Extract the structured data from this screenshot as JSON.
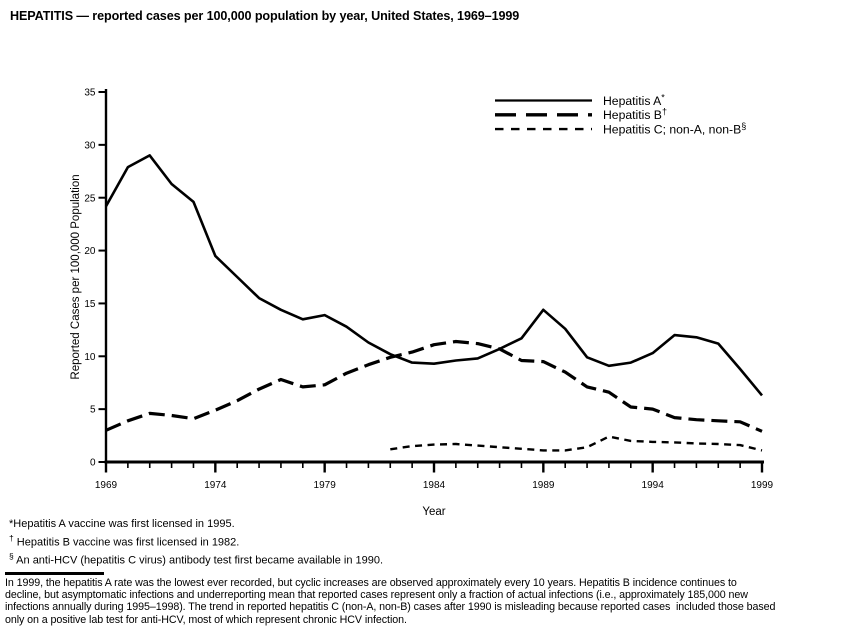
{
  "title": "HEPATITIS — reported cases per 100,000 population by year, United States, 1969–1999",
  "chart_data": {
    "type": "line",
    "title": "HEPATITIS — reported cases per 100,000 population by year, United States, 1969–1999",
    "xlabel": "Year",
    "ylabel": "Reported Cases per 100,000 Population",
    "xlim": [
      1969,
      1999
    ],
    "ylim": [
      0,
      35
    ],
    "yticks": [
      0,
      5,
      10,
      15,
      20,
      25,
      30,
      35
    ],
    "xticks": [
      1969,
      1974,
      1979,
      1984,
      1989,
      1994,
      1999
    ],
    "grid": false,
    "legend_position": "upper-right-inside",
    "line_color": "#000000",
    "series": [
      {
        "name": "Hepatitis A",
        "legend_sup": "*",
        "line_style": "solid",
        "start_year": 1969,
        "values": [
          24.2,
          27.9,
          29.0,
          26.3,
          24.6,
          19.5,
          17.5,
          15.5,
          14.4,
          13.5,
          13.9,
          12.8,
          11.3,
          10.2,
          9.4,
          9.3,
          9.6,
          9.8,
          10.7,
          11.7,
          14.4,
          12.6,
          9.9,
          9.1,
          9.4,
          10.3,
          12.0,
          11.8,
          11.2,
          8.8,
          6.3
        ]
      },
      {
        "name": "Hepatitis B",
        "legend_sup": "†",
        "line_style": "long-dash",
        "start_year": 1969,
        "values": [
          3.0,
          3.9,
          4.6,
          4.4,
          4.1,
          4.9,
          5.8,
          6.9,
          7.8,
          7.1,
          7.3,
          8.4,
          9.2,
          9.9,
          10.4,
          11.1,
          11.4,
          11.2,
          10.7,
          9.6,
          9.5,
          8.5,
          7.1,
          6.6,
          5.2,
          5.0,
          4.2,
          4.0,
          3.9,
          3.8,
          2.9
        ]
      },
      {
        "name": "Hepatitis C; non-A, non-B",
        "legend_sup": "§",
        "line_style": "short-dash",
        "start_year": 1982,
        "values": [
          1.2,
          1.5,
          1.65,
          1.7,
          1.55,
          1.4,
          1.25,
          1.1,
          1.1,
          1.4,
          2.4,
          2.0,
          1.9,
          1.85,
          1.75,
          1.7,
          1.6,
          1.1
        ]
      }
    ]
  },
  "footnotes": [
    {
      "symbol": "*",
      "text": "Hepatitis A vaccine was first licensed in 1995."
    },
    {
      "symbol": "†",
      "text": " Hepatitis B vaccine was first licensed in 1982."
    },
    {
      "symbol": "§",
      "text": " An anti-HCV (hepatitis C virus) antibody test first became available in 1990."
    }
  ],
  "commentary": {
    "lines": [
      "In 1999, the hepatitis A rate was the lowest ever recorded, but cyclic increases are observed approximately every 10 years. Hepatitis B incidence continues to",
      "decline, but asymptomatic infections and underreporting mean that reported cases represent only a fraction of actual infections (i.e., approximately 185,000 new",
      "infections annually during 1995–1998). The trend in reported hepatitis C (non-A, non-B) cases after 1990 is misleading because reported cases  included those based",
      "only on a positive lab test for anti-HCV, most of which represent chronic HCV infection."
    ]
  }
}
